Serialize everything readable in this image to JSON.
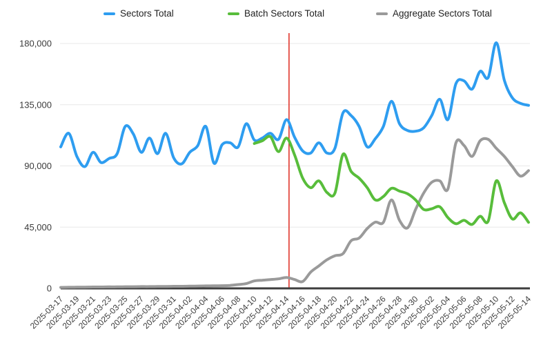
{
  "chart_data": {
    "type": "line",
    "title": "",
    "legend_position": "top",
    "grid": true,
    "axis_color": "#3d3d3d",
    "gridline_color": "#e8e8e8",
    "label_color": "#3b3b3b",
    "ylim": [
      0,
      180000
    ],
    "yticks": [
      0,
      45000,
      90000,
      135000,
      180000
    ],
    "ytick_labels": [
      "0",
      "45,000",
      "90,000",
      "135,000",
      "180,000"
    ],
    "x_tick_every": 2,
    "x": [
      "2025-03-17",
      "2025-03-18",
      "2025-03-19",
      "2025-03-20",
      "2025-03-21",
      "2025-03-22",
      "2025-03-23",
      "2025-03-24",
      "2025-03-25",
      "2025-03-26",
      "2025-03-27",
      "2025-03-28",
      "2025-03-29",
      "2025-03-30",
      "2025-03-31",
      "2025-04-01",
      "2025-04-02",
      "2025-04-03",
      "2025-04-04",
      "2025-04-05",
      "2025-04-06",
      "2025-04-07",
      "2025-04-08",
      "2025-04-09",
      "2025-04-10",
      "2025-04-11",
      "2025-04-12",
      "2025-04-13",
      "2025-04-14",
      "2025-04-15",
      "2025-04-16",
      "2025-04-17",
      "2025-04-18",
      "2025-04-19",
      "2025-04-20",
      "2025-04-21",
      "2025-04-22",
      "2025-04-23",
      "2025-04-24",
      "2025-04-25",
      "2025-04-26",
      "2025-04-27",
      "2025-04-28",
      "2025-04-29",
      "2025-04-30",
      "2025-05-01",
      "2025-05-02",
      "2025-05-03",
      "2025-05-04",
      "2025-05-05",
      "2025-05-06",
      "2025-05-07",
      "2025-05-08",
      "2025-05-09",
      "2025-05-10",
      "2025-05-11",
      "2025-05-12",
      "2025-05-13",
      "2025-05-14"
    ],
    "series": [
      {
        "name": "Sectors Total",
        "color": "#2e9df0",
        "values": [
          104000,
          114000,
          97000,
          89500,
          100000,
          92500,
          95500,
          99000,
          119000,
          113500,
          100000,
          110500,
          99000,
          114000,
          96000,
          91500,
          100000,
          105000,
          119000,
          92000,
          105500,
          107000,
          104000,
          121000,
          109000,
          110500,
          114000,
          109500,
          124000,
          111000,
          101000,
          99500,
          107000,
          99500,
          103000,
          129000,
          127000,
          119000,
          104000,
          110000,
          119000,
          137500,
          121000,
          116000,
          115500,
          118000,
          127000,
          139000,
          124000,
          150500,
          152500,
          146500,
          159500,
          155000,
          180500,
          153000,
          140000,
          136000,
          134500
        ]
      },
      {
        "name": "Batch Sectors Total",
        "color": "#58bd3b",
        "values": [
          null,
          null,
          null,
          null,
          null,
          null,
          null,
          null,
          null,
          null,
          null,
          null,
          null,
          null,
          null,
          null,
          null,
          null,
          null,
          null,
          null,
          null,
          null,
          null,
          106500,
          108500,
          111500,
          100500,
          110500,
          98000,
          81000,
          74000,
          79000,
          70500,
          70000,
          98500,
          86000,
          81000,
          74000,
          65000,
          67500,
          73500,
          71500,
          69500,
          65000,
          58000,
          58500,
          60000,
          52000,
          47500,
          50000,
          47000,
          53000,
          49500,
          79000,
          63000,
          51000,
          55500,
          48500
        ]
      },
      {
        "name": "Aggregate Sectors Total",
        "color": "#9a9a9a",
        "values": [
          700,
          800,
          900,
          900,
          1000,
          1000,
          1100,
          1100,
          1200,
          1200,
          1300,
          1300,
          1400,
          1400,
          1500,
          1500,
          1600,
          1700,
          1800,
          1900,
          2000,
          2200,
          2800,
          3500,
          5500,
          6000,
          6500,
          7000,
          8000,
          6500,
          5000,
          12000,
          16500,
          21000,
          24000,
          25500,
          35000,
          37000,
          44000,
          48700,
          48500,
          65000,
          50000,
          44500,
          58000,
          70000,
          78000,
          79000,
          73000,
          107000,
          105000,
          97000,
          108500,
          109500,
          103000,
          97000,
          89500,
          82500,
          86500
        ]
      }
    ],
    "annotation": {
      "type": "vline",
      "at_date": "2025-04-14",
      "position_fraction": 0.488,
      "color": "#e0342a"
    }
  }
}
